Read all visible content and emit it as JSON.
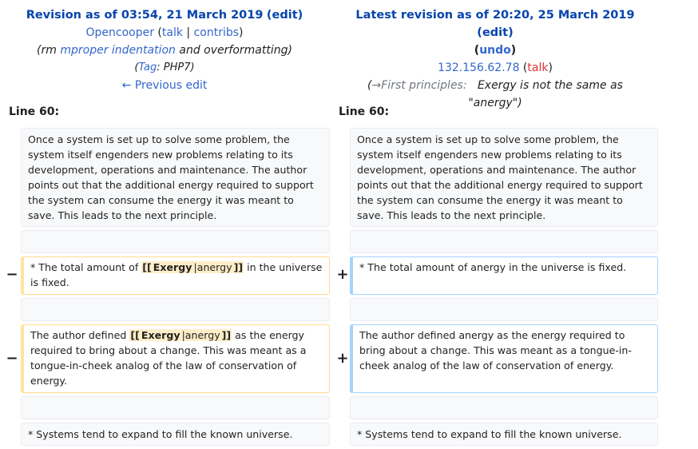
{
  "left_header": {
    "title_prefix": "Revision as of 03:54, 21 March 2019",
    "edit_label": "edit",
    "user": "Opencooper",
    "talk": "talk",
    "sep": "|",
    "contribs": "contribs",
    "summary_prefix": "(rm ",
    "summary_link": "mproper indentation",
    "summary_suffix": " and overformatting)",
    "tag_prefix": "(",
    "tag_link": "Tag",
    "tag_suffix": ": PHP7)",
    "prev_edit": "← Previous edit"
  },
  "right_header": {
    "title_prefix": "Latest revision as of 20:20, 25 March 2019",
    "edit_label": "edit",
    "undo_label": "undo",
    "user": "132.156.62.78",
    "talk": "talk",
    "section_arrow": "→First principles:",
    "summary_text": "Exergy is not the same as \"anergy\""
  },
  "line_left": "Line 60:",
  "line_right": "Line 60:",
  "diff": {
    "para1": "Once a system is set up to solve some problem, the system itself engenders new problems relating to its development, operations and maintenance. The author points out that the additional energy required to support the system can consume the energy it was meant to save. This leads to the next principle.",
    "del1_pre": "* The total amount of ",
    "del1_hl_open": "[[",
    "del1_hl_word": "Exergy",
    "del1_hl_mid": "|anergy",
    "del1_hl_close": "]]",
    "del1_post": " in the universe is fixed.",
    "add1": "* The total amount of anergy in the universe is fixed.",
    "del2_pre": "The author defined ",
    "del2_hl_open": "[[",
    "del2_hl_word": "Exergy",
    "del2_hl_mid": "|anergy",
    "del2_hl_close": "]]",
    "del2_post": " as the energy required to bring about a change.  This was meant as a tongue-in-cheek analog of the law of conservation of energy.",
    "add2": "The author defined anergy as the energy required to bring about a change.  This was meant as a tongue-in-cheek analog of the law of conservation of energy.",
    "para_last": "* Systems tend to expand to fill the known universe.",
    "minus": "−",
    "plus": "+"
  }
}
